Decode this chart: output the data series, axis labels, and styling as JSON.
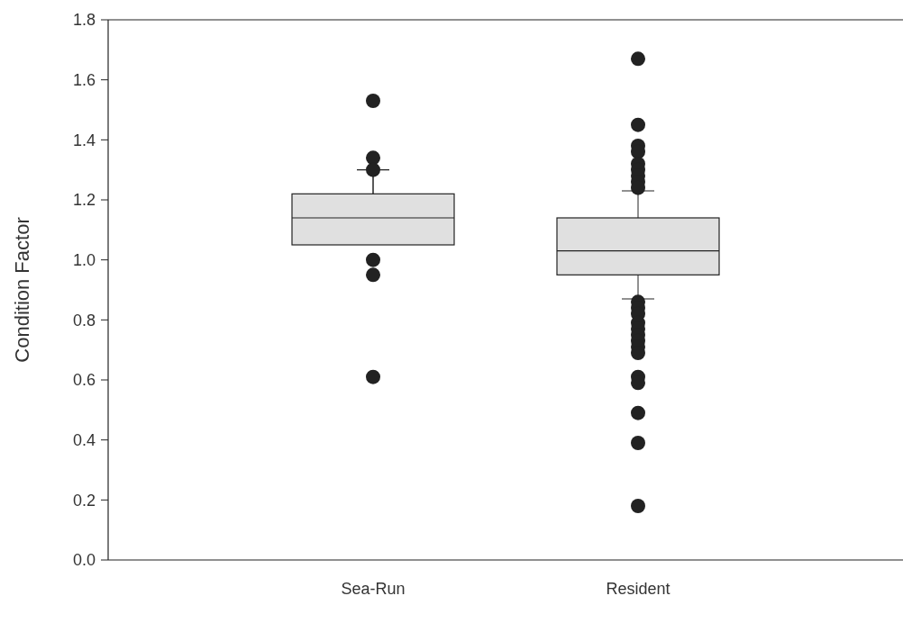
{
  "chart_data": {
    "type": "box",
    "ylabel": "Condition Factor",
    "categories": [
      "Sea-Run",
      "Resident"
    ],
    "ylim": [
      0,
      1.8
    ],
    "yticks": [
      {
        "value": 0,
        "label": "0.0"
      },
      0.2,
      0.4,
      0.6,
      0.8,
      {
        "value": 1,
        "label": "1.0"
      },
      1.2,
      1.4,
      1.6,
      1.8
    ],
    "color": "#e0e0e0",
    "grid": false,
    "marker": "circle",
    "boxes": [
      {
        "low": 1.3,
        "q1": 1.05,
        "median": 1.14,
        "q3": 1.22,
        "high": 1.3,
        "outliers": [
          1.53,
          1.34,
          1.3,
          1.0,
          0.95,
          0.61
        ]
      },
      {
        "low": 0.87,
        "q1": 0.95,
        "median": 1.03,
        "q3": 1.14,
        "high": 1.23,
        "outliers": [
          1.67,
          1.45,
          1.38,
          1.36,
          1.32,
          1.3,
          1.28,
          1.26,
          1.24,
          0.86,
          0.84,
          0.82,
          0.79,
          0.77,
          0.75,
          0.73,
          0.71,
          0.69,
          0.61,
          0.59,
          0.49,
          0.39,
          0.18
        ]
      }
    ]
  }
}
